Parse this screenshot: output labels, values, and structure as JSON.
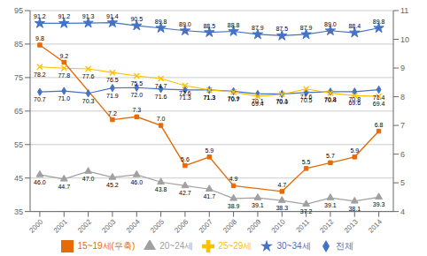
{
  "chart_data": {
    "type": "line",
    "x": [
      2000,
      2001,
      2002,
      2003,
      2004,
      2005,
      2006,
      2007,
      2008,
      2009,
      2010,
      2011,
      2012,
      2013,
      2014
    ],
    "xlim": [
      1999.6,
      2014.6
    ],
    "xticks": [
      2000,
      2001,
      2002,
      2003,
      2004,
      2005,
      2006,
      2007,
      2008,
      2009,
      2010,
      2011,
      2012,
      2013,
      2014
    ],
    "ylim": [
      35,
      95
    ],
    "yticks": [
      35,
      45,
      55,
      65,
      75,
      85,
      95
    ],
    "y2lim": [
      4,
      11
    ],
    "y2ticks": [
      4,
      5,
      6,
      7,
      8,
      9,
      10,
      11
    ],
    "grid": true,
    "legend": "bottom",
    "data_labels": true,
    "series": [
      {
        "name": "전체",
        "color": "#4472C4",
        "marker": "diamond",
        "values": [
          70.7,
          71.0,
          70.3,
          71.9,
          72.0,
          71.6,
          71.3,
          71.3,
          70.9,
          70.1,
          70.1,
          70.5,
          70.8,
          70.8,
          71.4
        ],
        "value_labels": [
          "70.7",
          "71.0",
          "70.3",
          "71.9",
          "72.0",
          "71.6",
          "71.3",
          "71.3",
          "70.9",
          "70.1",
          "70.1",
          "70.5",
          "70.8",
          "70.8",
          "71.4"
        ]
      },
      {
        "name": "20~24세",
        "color": "#A0A0A0",
        "marker": "triangle",
        "values": [
          46.0,
          44.7,
          47.0,
          45.2,
          46.0,
          43.8,
          42.7,
          41.7,
          38.9,
          39.1,
          38.3,
          37.2,
          39.1,
          38.1,
          39.3
        ],
        "value_labels": [
          "46.0",
          "44.7",
          "47.0",
          "45.2",
          "46.0",
          "43.8",
          "42.7",
          "41.7",
          "38.9",
          "39.1",
          "38.3",
          "37.2",
          "39.1",
          "38.1",
          "39.3"
        ]
      },
      {
        "name": "25~29세",
        "color": "#FFC000",
        "marker": "x",
        "values": [
          78.2,
          77.8,
          77.6,
          76.5,
          75.5,
          74.7,
          72.6,
          71.3,
          70.7,
          69.4,
          70.0,
          71.6,
          70.4,
          69.6,
          69.4
        ],
        "value_labels": [
          "78.2",
          "77.8",
          "77.6",
          "76.5",
          "75.5",
          "74.7",
          "72.6",
          "71.3",
          "70.7",
          "69.4",
          "70.0",
          "71.6",
          "70.4",
          "69.6",
          "69.4"
        ]
      },
      {
        "name": "30~34세",
        "color": "#4472C4",
        "marker": "star",
        "values": [
          91.2,
          91.2,
          91.3,
          91.4,
          90.5,
          89.8,
          89.0,
          88.5,
          88.8,
          87.9,
          87.5,
          87.9,
          89.0,
          88.4,
          89.8
        ],
        "value_labels": [
          "91.2",
          "91.2",
          "91.3",
          "91.4",
          "90.5",
          "89.8",
          "89.0",
          "88.5",
          "88.8",
          "87.9",
          "87.5",
          "87.9",
          "89.0",
          "88.4",
          "89.8"
        ]
      },
      {
        "name": "15~19세(우축)",
        "color": "#E36C09",
        "marker": "square",
        "axis": "y2",
        "values": [
          9.8,
          9.2,
          null,
          7.2,
          7.3,
          7.0,
          5.6,
          5.9,
          4.9,
          null,
          4.7,
          5.5,
          5.7,
          5.9,
          6.8
        ],
        "value_labels": [
          "9.8",
          "9.2",
          null,
          "7.2",
          "7.3",
          "7.0",
          "5.6",
          "5.9",
          "4.9",
          null,
          "4.7",
          "5.5",
          "5.7",
          "5.9",
          "6.8"
        ]
      }
    ]
  }
}
